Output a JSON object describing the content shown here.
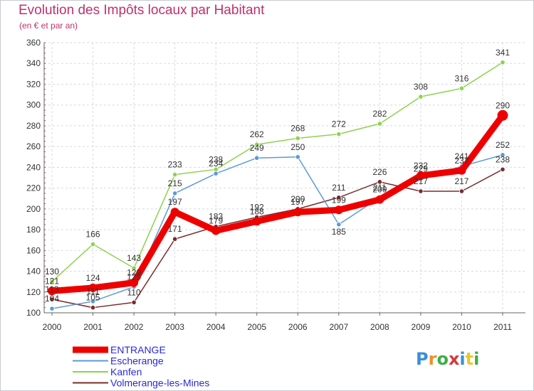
{
  "header": {
    "title": "Evolution des Impôts locaux par Habitant",
    "subtitle": "(en € et par an)"
  },
  "brand": {
    "letters": [
      "P",
      "r",
      "o",
      "x",
      "i",
      "t",
      "i"
    ],
    "colors": [
      "#3a8fd6",
      "#e8922b",
      "#3fae49",
      "#d43a3a",
      "#3a8fd6",
      "#e8c82b",
      "#3fae49"
    ]
  },
  "chart_data": {
    "type": "line",
    "title": "Evolution des Impôts locaux par Habitant",
    "subtitle": "(en € et par an)",
    "xlabel": "",
    "ylabel": "",
    "x": [
      "2000",
      "2001",
      "2002",
      "2003",
      "2004",
      "2005",
      "2006",
      "2007",
      "2008",
      "2009",
      "2010",
      "2011"
    ],
    "ylim": [
      100,
      360
    ],
    "yticks": [
      "100",
      "120",
      "140",
      "160",
      "180",
      "200",
      "220",
      "240",
      "260",
      "280",
      "300",
      "320",
      "340",
      "360"
    ],
    "grid": true,
    "legend_position": "bottom-left",
    "series": [
      {
        "name": "ENTRANGE",
        "color": "#ee0000",
        "label_color": "#2a2ad8",
        "values": [
          121,
          124,
          129,
          197,
          179,
          188,
          197,
          199,
          209,
          232,
          237,
          290
        ],
        "labels": [
          "121",
          "124",
          "129",
          "197",
          "179",
          "188",
          "197",
          "199",
          "209",
          "232",
          "237",
          "290"
        ]
      },
      {
        "name": "Escherange",
        "color": "#5b9bd5",
        "label_color": "#5b9bd5",
        "values": [
          104,
          111,
          125,
          215,
          234,
          249,
          250,
          185,
          211,
          229,
          241,
          252
        ],
        "labels": [
          "104",
          "111",
          "125",
          "215",
          "234",
          "249",
          "250",
          "185",
          "211",
          "229",
          "241",
          "252"
        ]
      },
      {
        "name": "Kanfen",
        "color": "#8ed24e",
        "label_color": "#6fbf2f",
        "values": [
          130,
          166,
          143,
          233,
          238,
          262,
          268,
          272,
          282,
          308,
          316,
          341
        ],
        "labels": [
          "130",
          "166",
          "143",
          "233",
          "238",
          "262",
          "268",
          "272",
          "282",
          "308",
          "316",
          "341"
        ]
      },
      {
        "name": "Volmerange-les-Mines",
        "color": "#7a2b2b",
        "label_color": "#7a2b2b",
        "values": [
          113,
          105,
          110,
          171,
          183,
          192,
          200,
          211,
          226,
          217,
          217,
          238
        ],
        "labels": [
          "113",
          "105",
          "110",
          "171",
          "183",
          "192",
          "200",
          "211",
          "226",
          "217",
          "217",
          "238"
        ]
      }
    ]
  }
}
